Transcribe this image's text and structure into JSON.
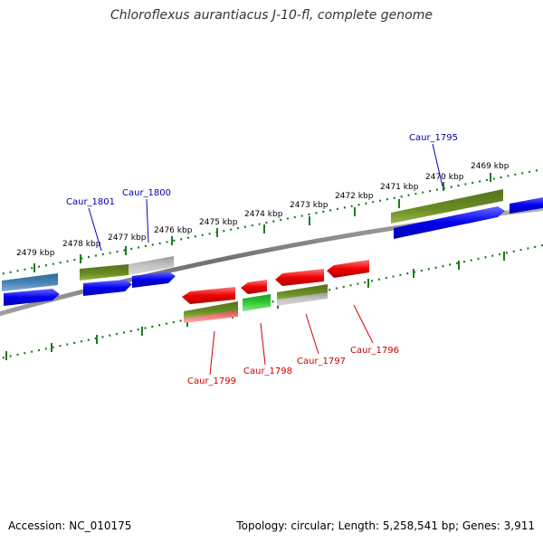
{
  "title": "Chloroflexus aurantiacus J-10-fl, complete genome",
  "footer": {
    "accession": "Accession: NC_010175",
    "stats": "Topology: circular; Length: 5,258,541 bp; Genes: 3,911"
  },
  "scale_labels": [
    "2479 kbp",
    "2478 kbp",
    "2477 kbp",
    "2476 kbp",
    "2475 kbp",
    "2474 kbp",
    "2473 kbp",
    "2472 kbp",
    "2471 kbp",
    "2470 kbp",
    "2469 kbp"
  ],
  "gene_labels_top": [
    "Caur_1801",
    "Caur_1800",
    "Caur_1795"
  ],
  "gene_labels_bottom": [
    "Caur_1799",
    "Caur_1798",
    "Caur_1797",
    "Caur_1796"
  ],
  "colors": {
    "backbone": "#808080",
    "scale": "#1e7b1e",
    "cds_forward": "#0000ee",
    "cds_reverse": "#ee0000",
    "olive": "#6b8e23",
    "gray": "#b5b5b5",
    "steelblue": "#4682b4",
    "green": "#33cc33",
    "salmon": "#f08080"
  }
}
